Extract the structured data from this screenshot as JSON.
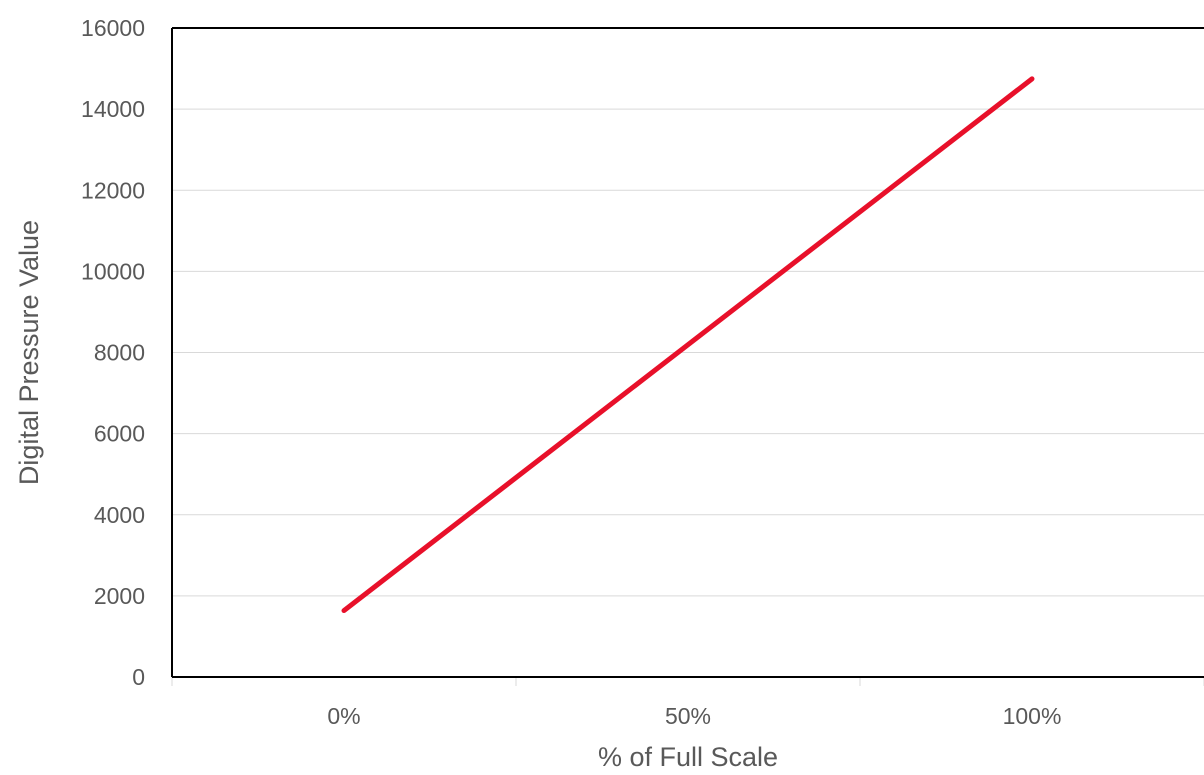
{
  "chart_data": {
    "type": "line",
    "title": "",
    "xlabel": "% of Full Scale",
    "ylabel": "Digital Pressure Value",
    "x_tick_labels": [
      "0%",
      "50%",
      "100%"
    ],
    "y_ticks": [
      0,
      2000,
      4000,
      6000,
      8000,
      10000,
      12000,
      14000,
      16000
    ],
    "y_tick_labels": [
      "0",
      "2000",
      "4000",
      "6000",
      "8000",
      "10000",
      "12000",
      "14000",
      "16000"
    ],
    "xlim": [
      -25,
      125
    ],
    "ylim": [
      0,
      16000
    ],
    "grid": true,
    "series": [
      {
        "x": [
          0,
          100
        ],
        "values": [
          1638,
          14746
        ],
        "color": "#e8102a"
      }
    ]
  }
}
